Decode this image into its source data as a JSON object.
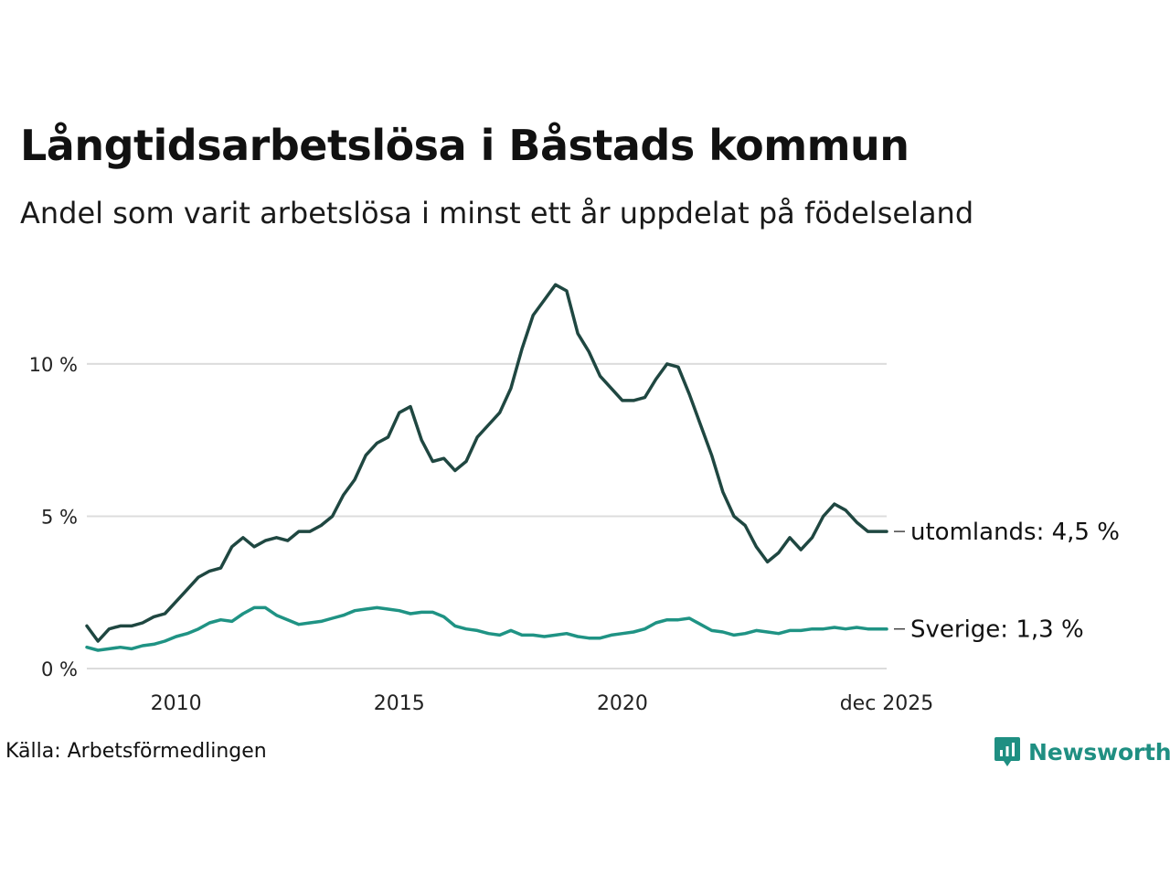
{
  "title": "Långtidsarbetslösa i Båstads kommun",
  "subtitle": "Andel som varit arbetslösa i minst ett år uppdelat på födelseland",
  "source": "Källa: Arbetsförmedlingen",
  "brand": {
    "name": "Newsworthy",
    "icon": "newsworthy-logo-icon",
    "color": "#1f8f82"
  },
  "chart_data": {
    "type": "line",
    "x": [
      2008.0,
      2008.25,
      2008.5,
      2008.75,
      2009.0,
      2009.25,
      2009.5,
      2009.75,
      2010.0,
      2010.25,
      2010.5,
      2010.75,
      2011.0,
      2011.25,
      2011.5,
      2011.75,
      2012.0,
      2012.25,
      2012.5,
      2012.75,
      2013.0,
      2013.25,
      2013.5,
      2013.75,
      2014.0,
      2014.25,
      2014.5,
      2014.75,
      2015.0,
      2015.25,
      2015.5,
      2015.75,
      2016.0,
      2016.25,
      2016.5,
      2016.75,
      2017.0,
      2017.25,
      2017.5,
      2017.75,
      2018.0,
      2018.25,
      2018.5,
      2018.75,
      2019.0,
      2019.25,
      2019.5,
      2019.75,
      2020.0,
      2020.25,
      2020.5,
      2020.75,
      2021.0,
      2021.25,
      2021.5,
      2021.75,
      2022.0,
      2022.25,
      2022.5,
      2022.75,
      2023.0,
      2023.25,
      2023.5,
      2023.75,
      2024.0,
      2024.25,
      2024.5,
      2024.75,
      2025.0,
      2025.25,
      2025.5,
      2025.75,
      2025.92
    ],
    "series": [
      {
        "name": "utomlands",
        "color": "#1f4741",
        "values": [
          1.4,
          0.9,
          1.3,
          1.4,
          1.4,
          1.5,
          1.7,
          1.8,
          2.2,
          2.6,
          3.0,
          3.2,
          3.3,
          4.0,
          4.3,
          4.0,
          4.2,
          4.3,
          4.2,
          4.5,
          4.5,
          4.7,
          5.0,
          5.7,
          6.2,
          7.0,
          7.4,
          7.6,
          8.4,
          8.6,
          7.5,
          6.8,
          6.9,
          6.5,
          6.8,
          7.6,
          8.0,
          8.4,
          9.2,
          10.5,
          11.6,
          12.1,
          12.6,
          12.4,
          11.0,
          10.4,
          9.6,
          9.2,
          8.8,
          8.8,
          8.9,
          9.5,
          10.0,
          9.9,
          9.0,
          8.0,
          7.0,
          5.8,
          5.0,
          4.7,
          4.0,
          3.5,
          3.8,
          4.3,
          3.9,
          4.3,
          5.0,
          5.4,
          5.2,
          4.8,
          4.5,
          4.5,
          4.5
        ]
      },
      {
        "name": "Sverige",
        "color": "#1f9384",
        "values": [
          0.7,
          0.6,
          0.65,
          0.7,
          0.65,
          0.75,
          0.8,
          0.9,
          1.05,
          1.15,
          1.3,
          1.5,
          1.6,
          1.55,
          1.8,
          2.0,
          2.0,
          1.75,
          1.6,
          1.45,
          1.5,
          1.55,
          1.65,
          1.75,
          1.9,
          1.95,
          2.0,
          1.95,
          1.9,
          1.8,
          1.85,
          1.85,
          1.7,
          1.4,
          1.3,
          1.25,
          1.15,
          1.1,
          1.25,
          1.1,
          1.1,
          1.05,
          1.1,
          1.15,
          1.05,
          1.0,
          1.0,
          1.1,
          1.15,
          1.2,
          1.3,
          1.5,
          1.6,
          1.6,
          1.65,
          1.45,
          1.25,
          1.2,
          1.1,
          1.15,
          1.25,
          1.2,
          1.15,
          1.25,
          1.25,
          1.3,
          1.3,
          1.35,
          1.3,
          1.35,
          1.3,
          1.3,
          1.3
        ]
      }
    ],
    "end_labels": [
      "utomlands: 4,5 %",
      "Sverige: 1,3 %"
    ],
    "xlim": [
      2008.0,
      2025.92
    ],
    "ylim": [
      0,
      13
    ],
    "y_ticks": [
      0,
      5,
      10
    ],
    "y_tick_labels": [
      "0 %",
      "5 %",
      "10 %"
    ],
    "x_ticks": [
      2010,
      2015,
      2020,
      2025.92
    ],
    "x_tick_labels": [
      "2010",
      "2015",
      "2020",
      "dec 2025"
    ],
    "grid": "horizontal",
    "xlabel": "",
    "ylabel": ""
  }
}
